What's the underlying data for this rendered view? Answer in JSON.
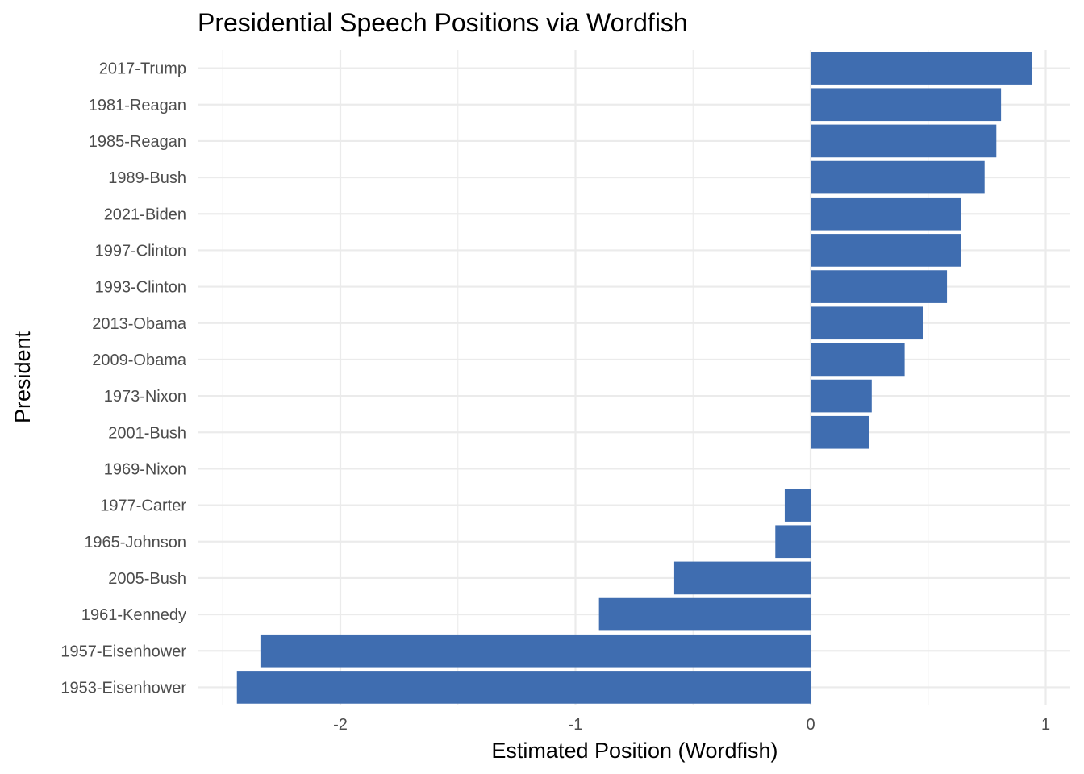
{
  "chart_data": {
    "type": "bar",
    "orientation": "horizontal",
    "title": "Presidential Speech Positions via Wordfish",
    "xlabel": "Estimated Position (Wordfish)",
    "ylabel": "President",
    "xlim": [
      -2.5,
      1.1
    ],
    "xticks": [
      -2,
      -1,
      0,
      1
    ],
    "xtick_labels": [
      "-2",
      "-1",
      "0",
      "1"
    ],
    "grid": true,
    "legend": "none",
    "bar_color": "#3f6db0",
    "categories": [
      "2017-Trump",
      "1981-Reagan",
      "1985-Reagan",
      "1989-Bush",
      "2021-Biden",
      "1997-Clinton",
      "1993-Clinton",
      "2013-Obama",
      "2009-Obama",
      "1973-Nixon",
      "2001-Bush",
      "1969-Nixon",
      "1977-Carter",
      "1965-Johnson",
      "2005-Bush",
      "1961-Kennedy",
      "1957-Eisenhower",
      "1953-Eisenhower"
    ],
    "values": [
      0.94,
      0.81,
      0.79,
      0.74,
      0.64,
      0.64,
      0.58,
      0.48,
      0.4,
      0.26,
      0.25,
      0.003,
      -0.11,
      -0.15,
      -0.58,
      -0.9,
      -2.34,
      -2.44
    ]
  }
}
